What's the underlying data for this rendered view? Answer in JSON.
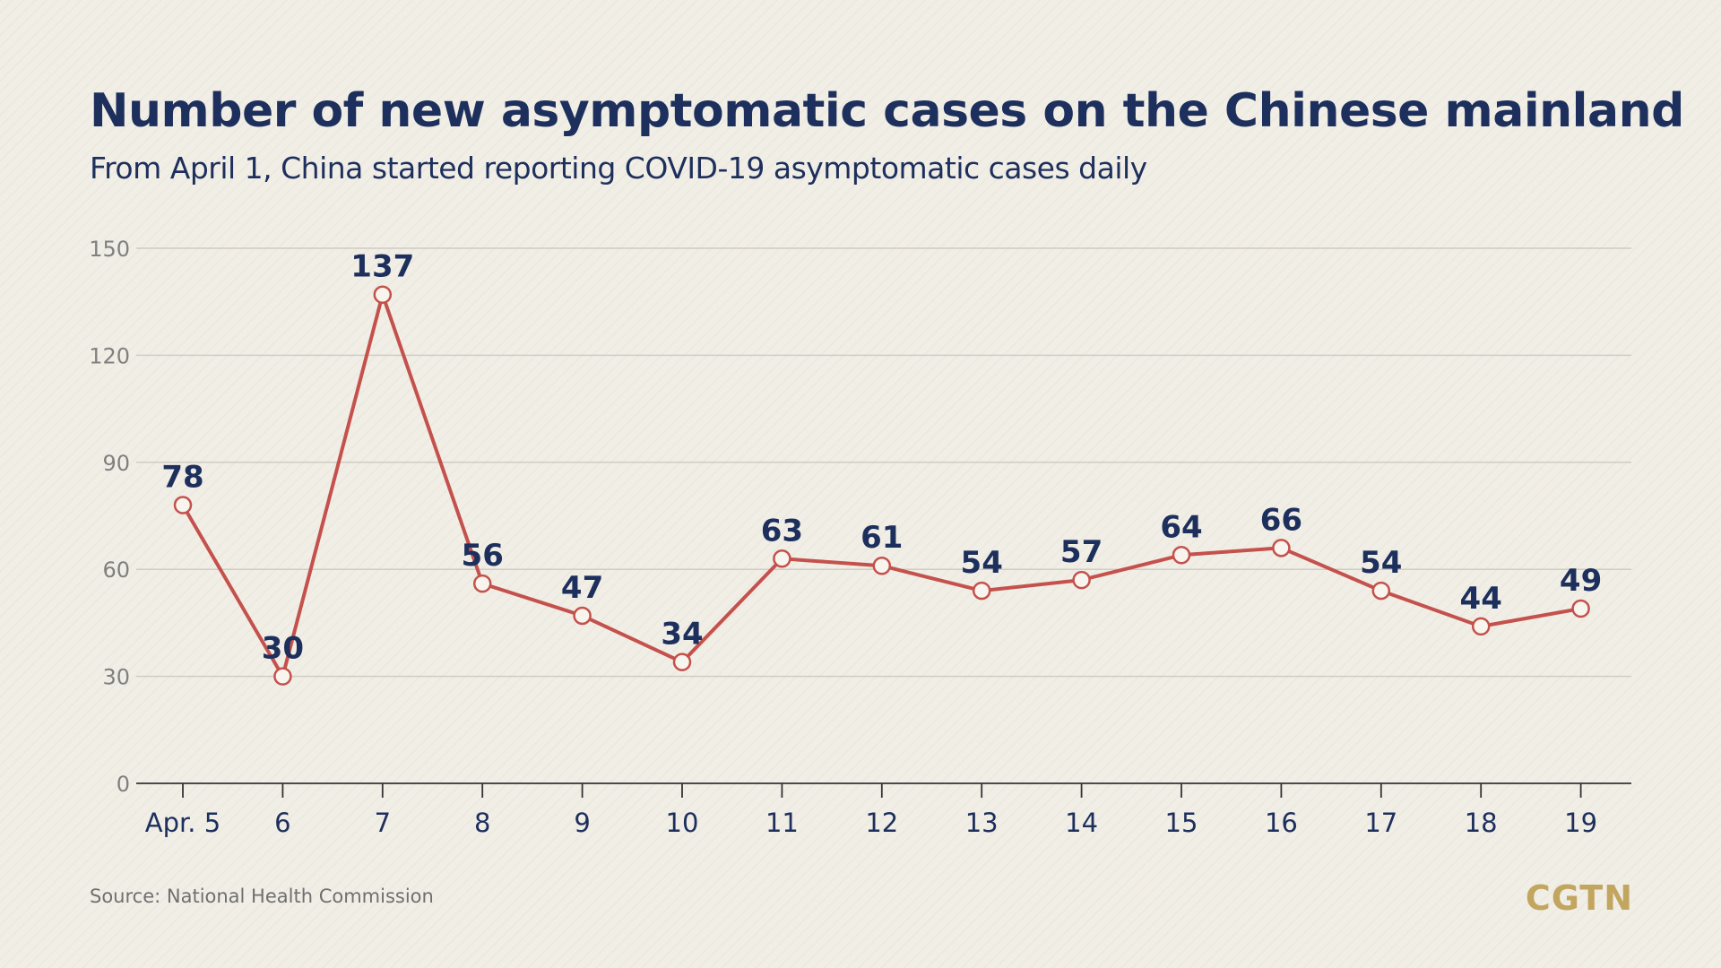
{
  "chart_data": {
    "type": "line",
    "title": "Number of new asymptomatic cases on the Chinese mainland",
    "subtitle": "From April 1, China started reporting COVID-19 asymptomatic cases daily",
    "categories": [
      "Apr. 5",
      "6",
      "7",
      "8",
      "9",
      "10",
      "11",
      "12",
      "13",
      "14",
      "15",
      "16",
      "17",
      "18",
      "19"
    ],
    "values": [
      78,
      30,
      137,
      56,
      47,
      34,
      63,
      61,
      54,
      57,
      64,
      66,
      54,
      44,
      49
    ],
    "yticks": [
      0,
      30,
      60,
      90,
      120,
      150
    ],
    "ylim": [
      0,
      150
    ],
    "grid": true,
    "xlabel": "",
    "ylabel": "",
    "legend": "none",
    "line_color": "#c4514c",
    "marker_fill": "#f8f5ee",
    "label_color": "#1d2f5c"
  },
  "source": "Source: National Health Commission",
  "brand": "CGTN",
  "colors": {
    "background": "#f1eee6",
    "title": "#1d2f5c",
    "gridline": "#cfccc4",
    "brand": "#c2a660"
  }
}
